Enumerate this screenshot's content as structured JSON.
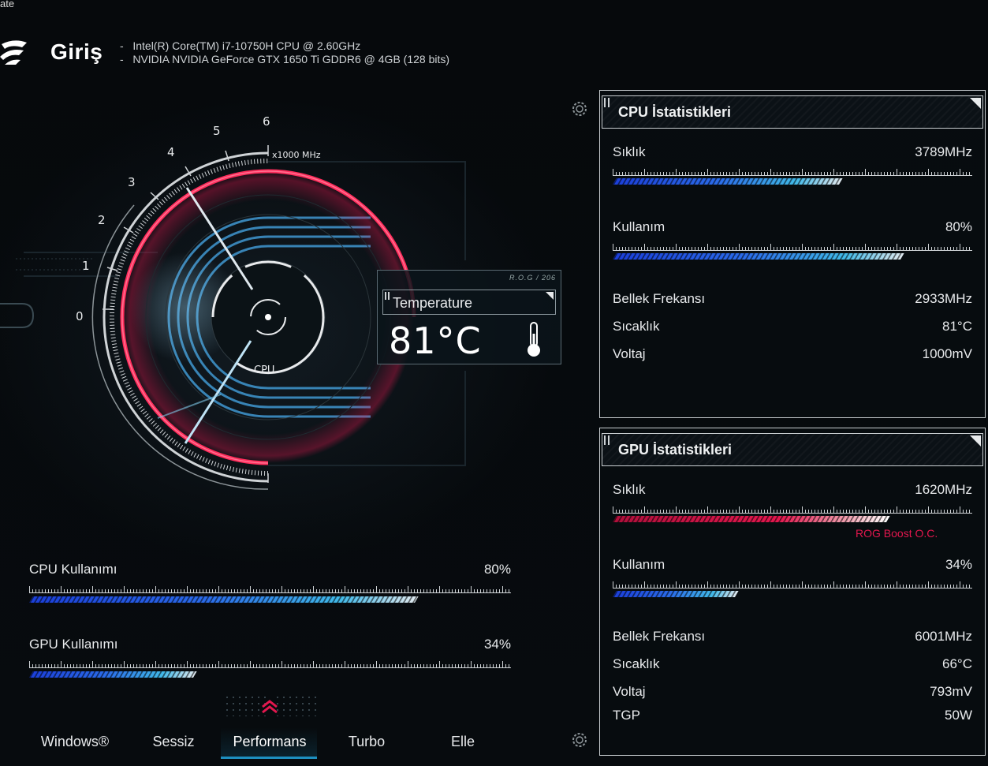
{
  "window": {
    "corner_text": "ate"
  },
  "header": {
    "title": "Giriş",
    "specs": [
      "Intel(R) Core(TM) i7-10750H CPU @ 2.60GHz",
      "NVIDIA NVIDIA GeForce GTX 1650 Ti GDDR6 @ 4GB (128 bits)"
    ]
  },
  "gauge": {
    "scale_labels": [
      "0",
      "1",
      "2",
      "3",
      "4",
      "5",
      "6"
    ],
    "unit": "x1000 MHz",
    "center_label": "CPU",
    "needle_value_ghz": 3.789
  },
  "temperature": {
    "tag": "R.O.G / 206",
    "label": "Temperature",
    "value": "81°C"
  },
  "usage": {
    "cpu": {
      "label": "CPU Kullanımı",
      "value": "80%",
      "fraction": 0.8
    },
    "gpu": {
      "label": "GPU Kullanımı",
      "value": "34%",
      "fraction": 0.34
    }
  },
  "modes": {
    "items": [
      "Windows®",
      "Sessiz",
      "Performans",
      "Turbo",
      "Elle"
    ],
    "active": "Performans"
  },
  "cpu_stats": {
    "title": "CPU İstatistikleri",
    "frequency": {
      "label": "Sıklık",
      "value": "3789MHz",
      "fraction": 0.63
    },
    "usage": {
      "label": "Kullanım",
      "value": "80%",
      "fraction": 0.8
    },
    "mem_freq": {
      "label": "Bellek Frekansı",
      "value": "2933MHz"
    },
    "temp": {
      "label": "Sıcaklık",
      "value": "81°C"
    },
    "voltage": {
      "label": "Voltaj",
      "value": "1000mV"
    }
  },
  "gpu_stats": {
    "title": "GPU İstatistikleri",
    "frequency": {
      "label": "Sıklık",
      "value": "1620MHz",
      "fraction": 0.76
    },
    "boost_label": "ROG Boost O.C.",
    "usage": {
      "label": "Kullanım",
      "value": "34%",
      "fraction": 0.34
    },
    "mem_freq": {
      "label": "Bellek Frekansı",
      "value": "6001MHz"
    },
    "temp": {
      "label": "Sıcaklık",
      "value": "66°C"
    },
    "voltage": {
      "label": "Voltaj",
      "value": "793mV"
    },
    "tgp": {
      "label": "TGP",
      "value": "50W"
    }
  },
  "colors": {
    "accent": "#e3174e",
    "blue": "#2a6ae8",
    "cyan": "#40b8e8",
    "tab_active": "#1d8fbf"
  }
}
